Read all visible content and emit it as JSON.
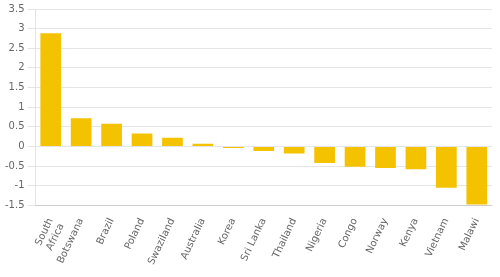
{
  "chart_data": {
    "type": "bar",
    "categories": [
      "South\nAfrica",
      "Botswana",
      "Brazil",
      "Poland",
      "Swaziland",
      "Australia",
      "Korea",
      "Sri Lanka",
      "Thailand",
      "Nigeria",
      "Congo",
      "Norway",
      "Kenya",
      "Vietnam",
      "Malawi"
    ],
    "values": [
      2.88,
      0.72,
      0.58,
      0.33,
      0.22,
      0.07,
      -0.04,
      -0.12,
      -0.18,
      -0.42,
      -0.52,
      -0.55,
      -0.58,
      -1.05,
      -1.48
    ],
    "color": "#F5C200",
    "ylim": [
      -1.5,
      3.5
    ],
    "yticks": [
      -1.5,
      -1,
      -0.5,
      0,
      0.5,
      1,
      1.5,
      2,
      2.5,
      3,
      3.5
    ],
    "grid": true
  }
}
